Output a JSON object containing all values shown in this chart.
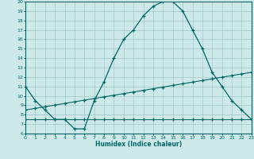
{
  "title": "",
  "xlabel": "Humidex (Indice chaleur)",
  "xlim": [
    0,
    23
  ],
  "ylim": [
    6,
    20
  ],
  "yticks": [
    6,
    7,
    8,
    9,
    10,
    11,
    12,
    13,
    14,
    15,
    16,
    17,
    18,
    19,
    20
  ],
  "xticks": [
    0,
    1,
    2,
    3,
    4,
    5,
    6,
    7,
    8,
    9,
    10,
    11,
    12,
    13,
    14,
    15,
    16,
    17,
    18,
    19,
    20,
    21,
    22,
    23
  ],
  "bg_color": "#cde8e8",
  "grid_color": "#a0c8c8",
  "line_color": "#006666",
  "curve1_x": [
    0,
    1,
    2,
    3,
    4,
    5,
    6,
    7,
    8,
    9,
    10,
    11,
    12,
    13,
    14,
    15,
    16,
    17,
    18,
    19,
    20,
    21,
    22,
    23
  ],
  "curve1_y": [
    11,
    9.5,
    8.5,
    7.5,
    7.5,
    6.5,
    6.5,
    9.5,
    11.5,
    14,
    16,
    17,
    18.5,
    19.5,
    20,
    20,
    19,
    17,
    15,
    12.5,
    11,
    9.5,
    8.5,
    7.5
  ],
  "curve2_x": [
    0,
    23
  ],
  "curve2_y": [
    7.5,
    7.5
  ],
  "curve3_x": [
    0,
    23
  ],
  "curve3_y": [
    8.5,
    12.5
  ],
  "curve2_marker_x": [
    0,
    1,
    2,
    3,
    4,
    5,
    6,
    7,
    8,
    9,
    10,
    11,
    12,
    13,
    14,
    15,
    16,
    17,
    18,
    19,
    20,
    21,
    22,
    23
  ],
  "curve2_marker_y": [
    7.5,
    7.5,
    7.5,
    7.5,
    7.5,
    7.5,
    7.5,
    7.5,
    7.5,
    7.5,
    7.5,
    7.5,
    7.5,
    7.5,
    7.5,
    7.5,
    7.5,
    7.5,
    7.5,
    7.5,
    7.5,
    7.5,
    7.5,
    7.5
  ],
  "curve3_marker_x": [
    0,
    1,
    2,
    3,
    4,
    5,
    6,
    7,
    8,
    9,
    10,
    11,
    12,
    13,
    14,
    15,
    16,
    17,
    18,
    19,
    20,
    21,
    22,
    23
  ],
  "curve3_marker_y": [
    8.5,
    8.67,
    8.85,
    9.02,
    9.2,
    9.37,
    9.54,
    9.72,
    9.89,
    10.07,
    10.24,
    10.41,
    10.59,
    10.76,
    10.93,
    11.11,
    11.28,
    11.46,
    11.63,
    11.8,
    11.98,
    12.15,
    12.33,
    12.5
  ]
}
